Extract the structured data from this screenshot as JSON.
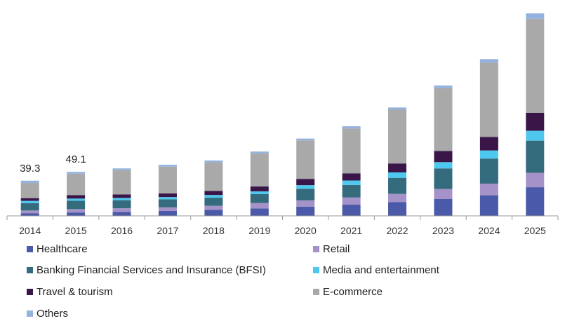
{
  "chart_data": {
    "type": "bar",
    "stacked": true,
    "categories": [
      "2014",
      "2015",
      "2016",
      "2017",
      "2018",
      "2019",
      "2020",
      "2021",
      "2022",
      "2023",
      "2024",
      "2025"
    ],
    "series": [
      {
        "name": "Healthcare",
        "color": "#4b5aa8",
        "values": [
          3.0,
          3.8,
          4.5,
          5.5,
          6.8,
          8.3,
          10.3,
          12.5,
          15.5,
          19.0,
          23.0,
          32.0
        ]
      },
      {
        "name": "Retail",
        "color": "#a592c8",
        "values": [
          3.0,
          3.8,
          4.0,
          4.0,
          4.5,
          6.0,
          7.0,
          8.0,
          9.0,
          11.0,
          13.0,
          16.0
        ]
      },
      {
        "name": "Banking Financial Services and Insurance (BFSI)",
        "color": "#346b7d",
        "values": [
          8.3,
          9.2,
          9.0,
          9.0,
          9.0,
          10.0,
          13.0,
          14.0,
          18.0,
          23.0,
          28.0,
          36.0
        ]
      },
      {
        "name": "Media and entertainment",
        "color": "#4fc8ef",
        "values": [
          2.5,
          2.5,
          2.5,
          2.5,
          3.0,
          3.0,
          4.0,
          5.0,
          6.0,
          7.0,
          9.0,
          11.0
        ]
      },
      {
        "name": "Travel & tourism",
        "color": "#3a1648",
        "values": [
          3.0,
          3.8,
          4.0,
          4.0,
          4.5,
          5.5,
          7.0,
          8.0,
          10.0,
          12.5,
          15.0,
          20.0
        ]
      },
      {
        "name": "E-commerce",
        "color": "#a9a9a9",
        "values": [
          17.0,
          24.0,
          27.0,
          30.0,
          32.0,
          37.0,
          43.0,
          50.0,
          60.0,
          70.0,
          83.0,
          105.0
        ]
      },
      {
        "name": "Others",
        "color": "#93b2de",
        "values": [
          2.5,
          2.0,
          2.0,
          2.0,
          2.0,
          2.0,
          2.0,
          2.5,
          2.5,
          3.0,
          4.0,
          6.0
        ]
      }
    ],
    "data_labels": [
      {
        "category": "2014",
        "text": "39.3"
      },
      {
        "category": "2015",
        "text": "49.1"
      }
    ],
    "xlabel": "",
    "ylabel": "",
    "ylim": [
      0,
      230
    ],
    "grid": false,
    "legend_position": "bottom"
  }
}
